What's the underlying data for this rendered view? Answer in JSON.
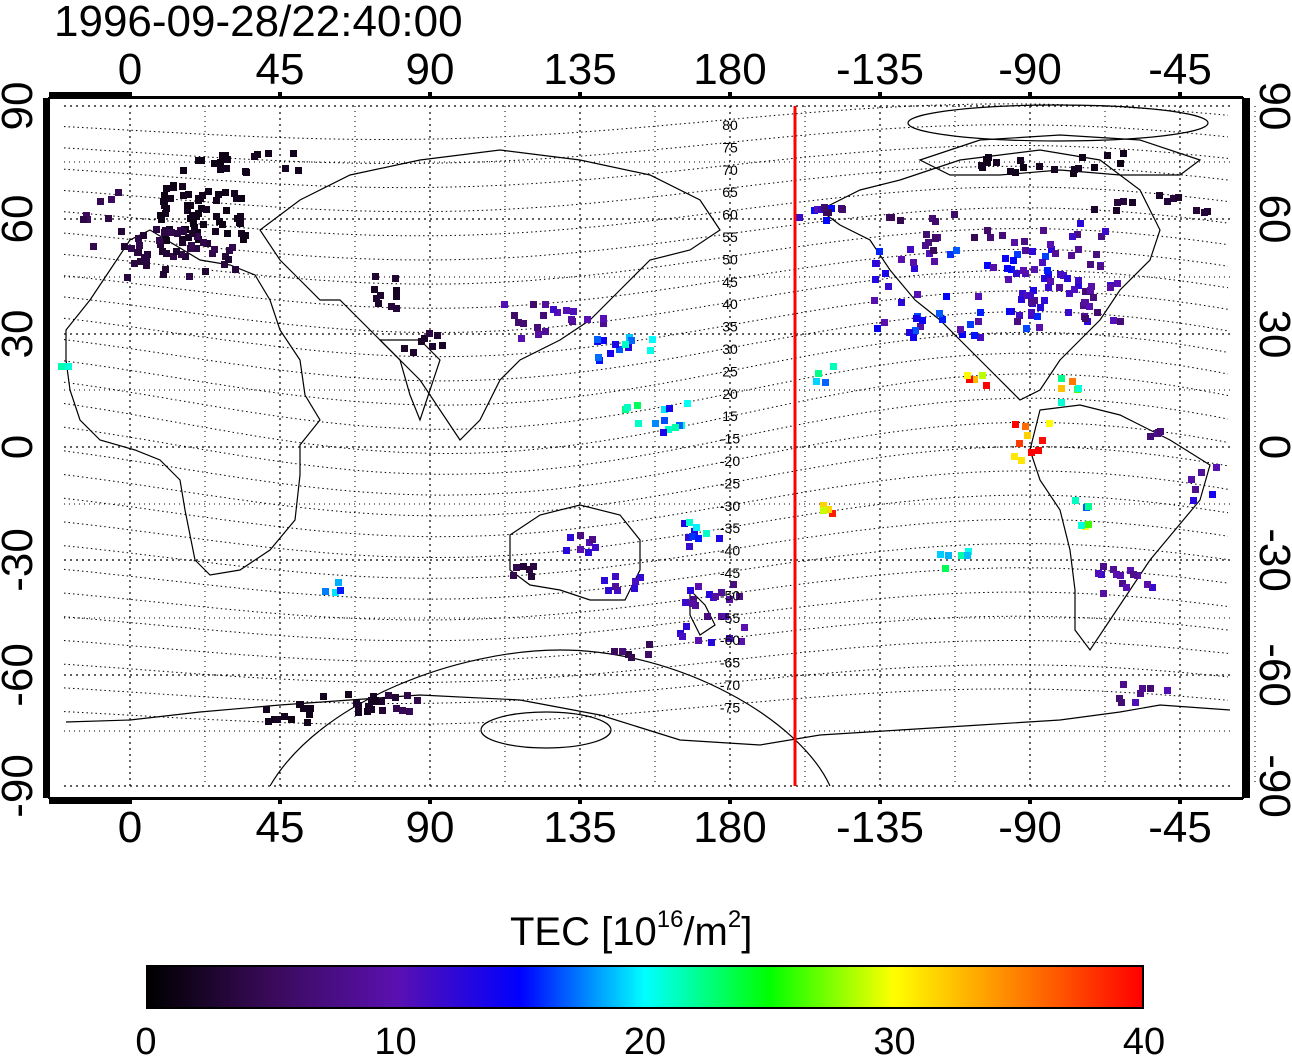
{
  "title": "1996-09-28/22:40:00",
  "map": {
    "lon_axis_labels": [
      "0",
      "45",
      "90",
      "135",
      "180",
      "-135",
      "-90",
      "-45"
    ],
    "lat_axis_labels": [
      "90",
      "60",
      "30",
      "0",
      "-30",
      "-60",
      "-90"
    ],
    "magnetic_latitude_labels": [
      "80",
      "75",
      "70",
      "65",
      "60",
      "55",
      "50",
      "45",
      "40",
      "35",
      "30",
      "25",
      "20",
      "15",
      "-15",
      "-20",
      "-25",
      "-30",
      "-35",
      "-40",
      "-45",
      "-50",
      "-55",
      "-60",
      "-65",
      "-70",
      "-75"
    ],
    "highlighted_meridian_color": "#ff0000",
    "gridlines": "dotted"
  },
  "colorbar": {
    "title_main": "TEC  [10",
    "title_exp1": "16",
    "title_mid": "/m",
    "title_exp2": "2",
    "title_end": "]",
    "min": 0,
    "max": 40,
    "tick_labels": [
      "0",
      "10",
      "20",
      "30",
      "40"
    ],
    "colormap": [
      "#000000",
      "#3a0a5a",
      "#5a10b0",
      "#0000ff",
      "#00ffff",
      "#00ff00",
      "#ffff00",
      "#ff8000",
      "#ff0000"
    ]
  }
}
